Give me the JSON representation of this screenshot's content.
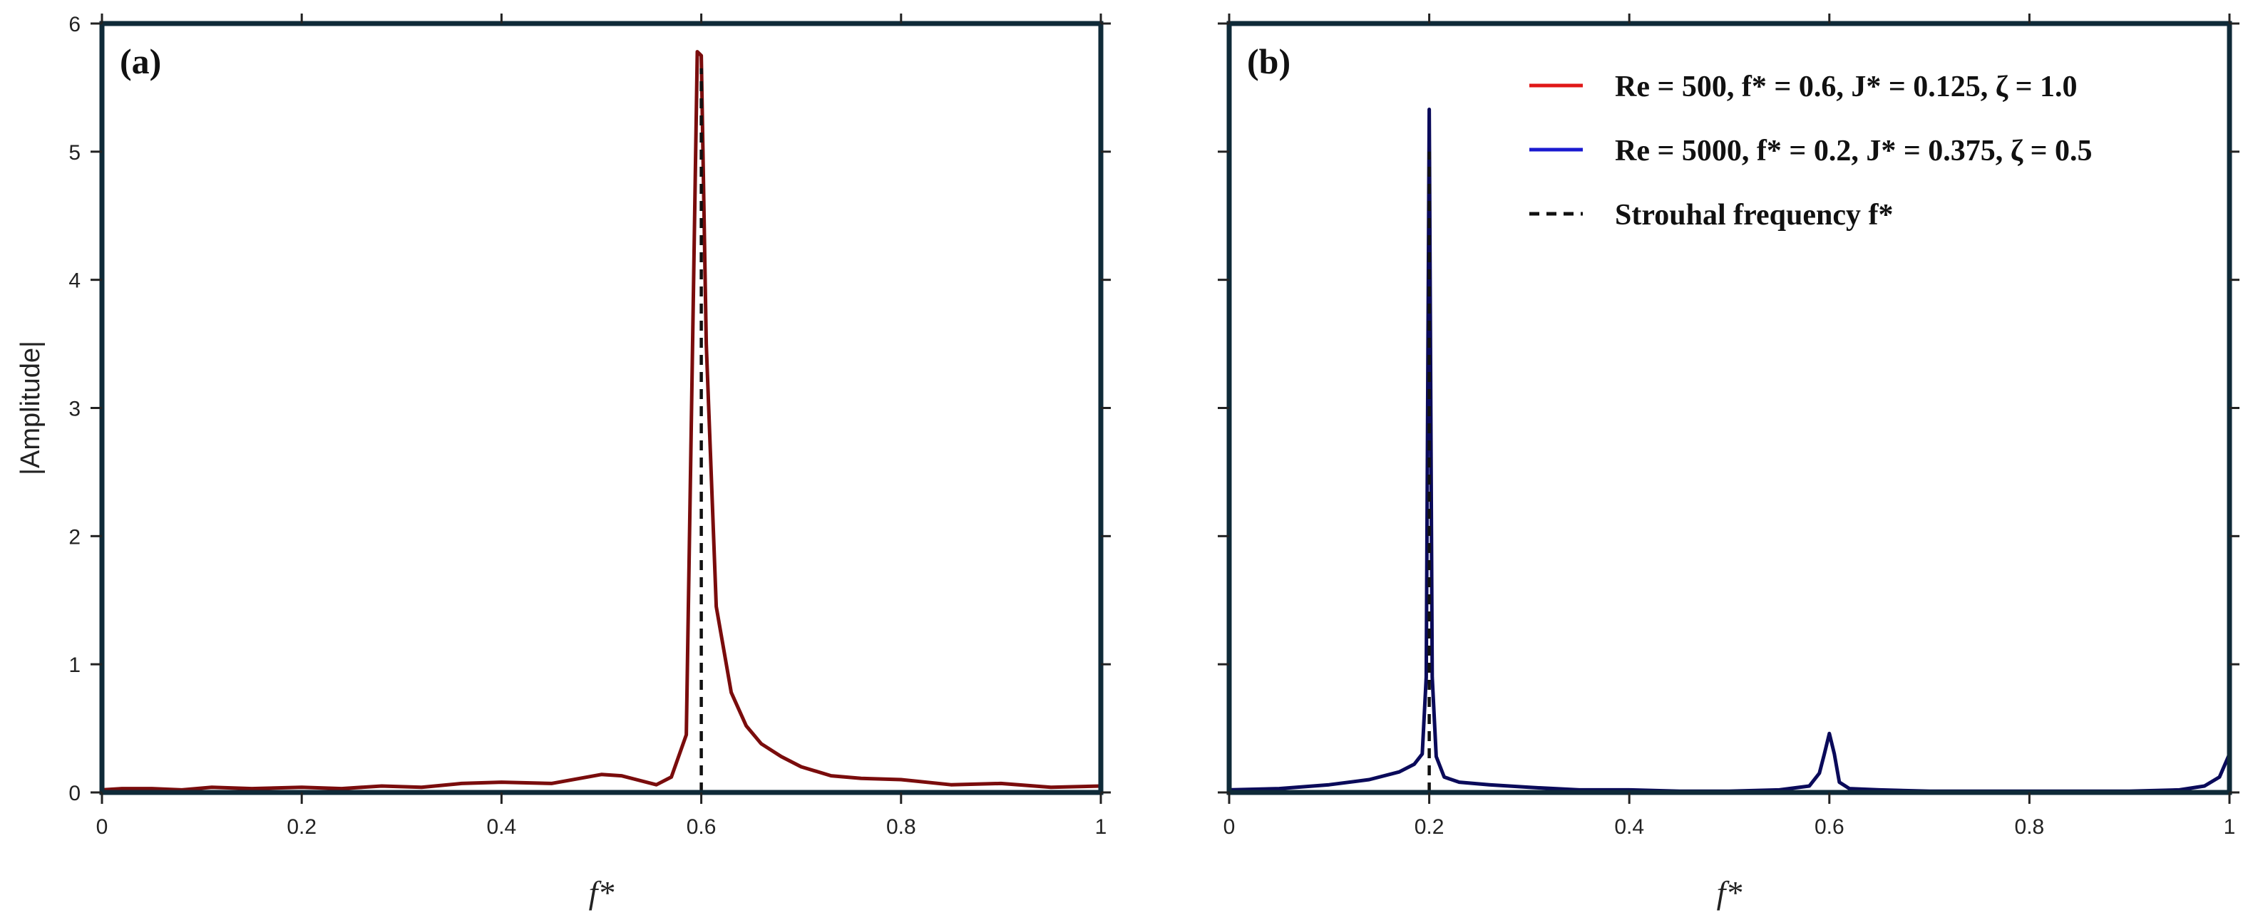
{
  "chart_data": [
    {
      "type": "line",
      "panel_label": "(a)",
      "title": "",
      "xlabel": "f*",
      "ylabel": "|Amplitude|",
      "xlim": [
        0,
        1
      ],
      "ylim": [
        0,
        6
      ],
      "xticks": [
        0,
        0.2,
        0.4,
        0.6,
        0.8,
        1
      ],
      "xtick_labels": [
        "0",
        "0.2",
        "0.4",
        "0.6",
        "0.8",
        "1"
      ],
      "yticks": [
        0,
        1,
        2,
        3,
        4,
        5,
        6
      ],
      "ytick_labels": [
        "0",
        "1",
        "2",
        "3",
        "4",
        "5",
        "6"
      ],
      "grid": false,
      "series": [
        {
          "name": "Re = 500, f* = 0.6, J* = 0.125, ζ = 1.0",
          "color": "#7a0c0c",
          "style": "solid",
          "x": [
            0,
            0.02,
            0.05,
            0.08,
            0.11,
            0.15,
            0.2,
            0.24,
            0.28,
            0.32,
            0.36,
            0.4,
            0.45,
            0.5,
            0.52,
            0.555,
            0.57,
            0.585,
            0.596,
            0.6,
            0.605,
            0.615,
            0.63,
            0.645,
            0.66,
            0.68,
            0.7,
            0.73,
            0.76,
            0.8,
            0.85,
            0.9,
            0.95,
            1.0
          ],
          "y": [
            0.02,
            0.03,
            0.03,
            0.02,
            0.04,
            0.03,
            0.04,
            0.03,
            0.05,
            0.04,
            0.07,
            0.08,
            0.07,
            0.14,
            0.13,
            0.06,
            0.12,
            0.45,
            5.78,
            5.75,
            3.5,
            1.45,
            0.78,
            0.52,
            0.38,
            0.28,
            0.2,
            0.13,
            0.11,
            0.1,
            0.06,
            0.07,
            0.04,
            0.05
          ]
        },
        {
          "name": "Strouhal frequency f*",
          "color": "#111111",
          "style": "dashed",
          "x": [
            0.6,
            0.6
          ],
          "y": [
            0,
            5.65
          ]
        }
      ]
    },
    {
      "type": "line",
      "panel_label": "(b)",
      "title": "",
      "xlabel": "f*",
      "ylabel": "",
      "xlim": [
        0,
        1
      ],
      "ylim": [
        0,
        6
      ],
      "xticks": [
        0,
        0.2,
        0.4,
        0.6,
        0.8,
        1
      ],
      "xtick_labels": [
        "0",
        "0.2",
        "0.4",
        "0.6",
        "0.8",
        "1"
      ],
      "yticks": [
        0,
        1,
        2,
        3,
        4,
        5,
        6
      ],
      "ytick_labels": [],
      "grid": false,
      "series": [
        {
          "name": "Re = 5000, f* = 0.2, J* = 0.375, ζ = 0.5",
          "color": "#0a0a5a",
          "style": "solid",
          "x": [
            0,
            0.05,
            0.1,
            0.14,
            0.17,
            0.185,
            0.193,
            0.197,
            0.2,
            0.203,
            0.207,
            0.215,
            0.23,
            0.26,
            0.3,
            0.35,
            0.4,
            0.45,
            0.5,
            0.55,
            0.58,
            0.59,
            0.595,
            0.6,
            0.605,
            0.61,
            0.62,
            0.65,
            0.7,
            0.75,
            0.8,
            0.85,
            0.9,
            0.95,
            0.975,
            0.99,
            1.0
          ],
          "y": [
            0.02,
            0.03,
            0.06,
            0.1,
            0.16,
            0.22,
            0.3,
            0.9,
            5.33,
            0.9,
            0.28,
            0.12,
            0.08,
            0.06,
            0.04,
            0.02,
            0.02,
            0.01,
            0.01,
            0.02,
            0.05,
            0.15,
            0.3,
            0.46,
            0.3,
            0.08,
            0.03,
            0.02,
            0.01,
            0.01,
            0.01,
            0.01,
            0.01,
            0.02,
            0.05,
            0.12,
            0.3
          ]
        },
        {
          "name": "Strouhal frequency f*",
          "color": "#111111",
          "style": "dashed",
          "x": [
            0.2,
            0.2
          ],
          "y": [
            0,
            5.0
          ]
        }
      ],
      "legend": {
        "position": "top-right",
        "entries": [
          {
            "label": "Re = 500, f* = 0.6, J* = 0.125, ζ = 1.0",
            "color": "#e01818",
            "style": "solid"
          },
          {
            "label": "Re = 5000, f* = 0.2, J* = 0.375, ζ = 0.5",
            "color": "#1a1ad0",
            "style": "solid"
          },
          {
            "label": "Strouhal frequency f*",
            "color": "#111111",
            "style": "dashed"
          }
        ]
      }
    }
  ],
  "frame_color": "#0f2a38",
  "tick_color": "#222222"
}
